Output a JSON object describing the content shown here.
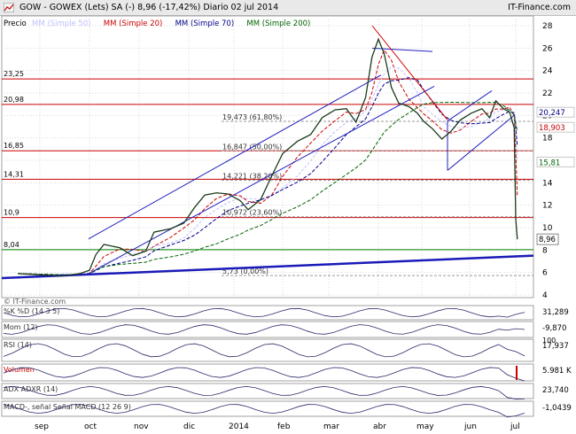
{
  "header": {
    "title": "GOW - GOWEX (Lets) SA (-)   8,96 (-17,42%)   Diario  02 jul 2014",
    "source": "IT-Finance.com"
  },
  "main_panel": {
    "label": "Precio",
    "legend": [
      {
        "text": "MM (Simple 50)",
        "color": "#bfbfff"
      },
      {
        "text": "MM (Simple 20)",
        "color": "#cc0000"
      },
      {
        "text": "MM (Simple 70)",
        "color": "#00008b"
      },
      {
        "text": "MM (Simple 200)",
        "color": "#006400"
      }
    ],
    "watermark": "© IT-Finance.com",
    "last_price_label": "8,96"
  },
  "chart_data": {
    "type": "line",
    "title": "GOW - GOWEX (Lets) SA (-) 8,96 (-17,42%) Diario 02 jul 2014",
    "x_labels": [
      "sep",
      "oct",
      "nov",
      "dic",
      "2014",
      "feb",
      "mar",
      "abr",
      "may",
      "jun",
      "jul"
    ],
    "ylim": [
      4,
      28
    ],
    "y_ticks": [
      "4",
      "6",
      "8",
      "10",
      "12",
      "14",
      "16",
      "18",
      "20",
      "22",
      "24",
      "26",
      "28"
    ],
    "price_series": {
      "name": "Precio",
      "points": [
        [
          "2013-08-15",
          5.9
        ],
        [
          "2013-09-01",
          5.8
        ],
        [
          "2013-09-15",
          5.7
        ],
        [
          "2013-09-25",
          5.9
        ],
        [
          "2013-10-01",
          6.2
        ],
        [
          "2013-10-05",
          7.6
        ],
        [
          "2013-10-10",
          8.5
        ],
        [
          "2013-10-20",
          8.2
        ],
        [
          "2013-10-28",
          7.5
        ],
        [
          "2013-11-05",
          7.9
        ],
        [
          "2013-11-10",
          9.6
        ],
        [
          "2013-11-20",
          9.9
        ],
        [
          "2013-11-28",
          10.4
        ],
        [
          "2013-12-05",
          11.8
        ],
        [
          "2013-12-12",
          12.9
        ],
        [
          "2013-12-20",
          13.1
        ],
        [
          "2013-12-28",
          13.0
        ],
        [
          "2014-01-05",
          12.4
        ],
        [
          "2014-01-10",
          11.6
        ],
        [
          "2014-01-18",
          12.5
        ],
        [
          "2014-01-25",
          14.6
        ],
        [
          "2014-02-01",
          16.6
        ],
        [
          "2014-02-10",
          17.7
        ],
        [
          "2014-02-18",
          18.3
        ],
        [
          "2014-02-25",
          19.8
        ],
        [
          "2014-03-05",
          20.5
        ],
        [
          "2014-03-12",
          20.6
        ],
        [
          "2014-03-18",
          19.4
        ],
        [
          "2014-03-24",
          21.6
        ],
        [
          "2014-03-28",
          25.2
        ],
        [
          "2014-04-01",
          26.8
        ],
        [
          "2014-04-05",
          25.5
        ],
        [
          "2014-04-10",
          22.5
        ],
        [
          "2014-04-15",
          21.1
        ],
        [
          "2014-04-22",
          20.8
        ],
        [
          "2014-04-28",
          20.2
        ],
        [
          "2014-05-02",
          19.5
        ],
        [
          "2014-05-08",
          18.8
        ],
        [
          "2014-05-14",
          17.9
        ],
        [
          "2014-05-20",
          18.6
        ],
        [
          "2014-05-26",
          19.6
        ],
        [
          "2014-06-02",
          20.2
        ],
        [
          "2014-06-09",
          20.6
        ],
        [
          "2014-06-14",
          19.8
        ],
        [
          "2014-06-18",
          21.3
        ],
        [
          "2014-06-23",
          20.6
        ],
        [
          "2014-06-27",
          20.3
        ],
        [
          "2014-06-30",
          18.9
        ],
        [
          "2014-07-01",
          10.8
        ],
        [
          "2014-07-02",
          8.96
        ]
      ]
    },
    "horizontal_levels": [
      {
        "value": 23.25,
        "label": "23,25"
      },
      {
        "value": 20.98,
        "label": "20,98"
      },
      {
        "value": 16.85,
        "label": "16,85"
      },
      {
        "value": 14.31,
        "label": "14,31"
      },
      {
        "value": 10.9,
        "label": "10,9"
      },
      {
        "value": 8.04,
        "label": "8,04"
      }
    ],
    "fibonacci_levels": [
      {
        "value": 19.473,
        "label": "19,473 (61,80%)"
      },
      {
        "value": 16.847,
        "label": "16,847 (50,00%)"
      },
      {
        "value": 14.221,
        "label": "14,221 (38,20%)"
      },
      {
        "value": 10.972,
        "label": "10,972 (23,60%)"
      },
      {
        "value": 5.73,
        "label": "5,73 (0,00%)"
      }
    ],
    "right_labels": [
      {
        "value": 20.247,
        "label": "20,247",
        "color": "#000080"
      },
      {
        "value": 18.903,
        "label": "18,903",
        "color": "#cc0000"
      },
      {
        "value": 15.81,
        "label": "15,81",
        "color": "#006400"
      }
    ],
    "indicator_panels": [
      {
        "name": "%K",
        "label_2": "%D (14 3 5)",
        "value_label": "31,289"
      },
      {
        "name": "Mom (12)",
        "value_label": "-9,870"
      },
      {
        "name": "RSI (14)",
        "value_label": "17,937",
        "top_label": "100"
      },
      {
        "name": "Volumen",
        "value_label": "5.981 K"
      },
      {
        "name": "ADX",
        "label_2": "ADXR (14)",
        "value_label": "23,740"
      },
      {
        "name": "MACD-, señal",
        "label_2": "Señal",
        "label_3": "MACD (12 26 9)",
        "value_label": "-1,0439"
      }
    ]
  }
}
